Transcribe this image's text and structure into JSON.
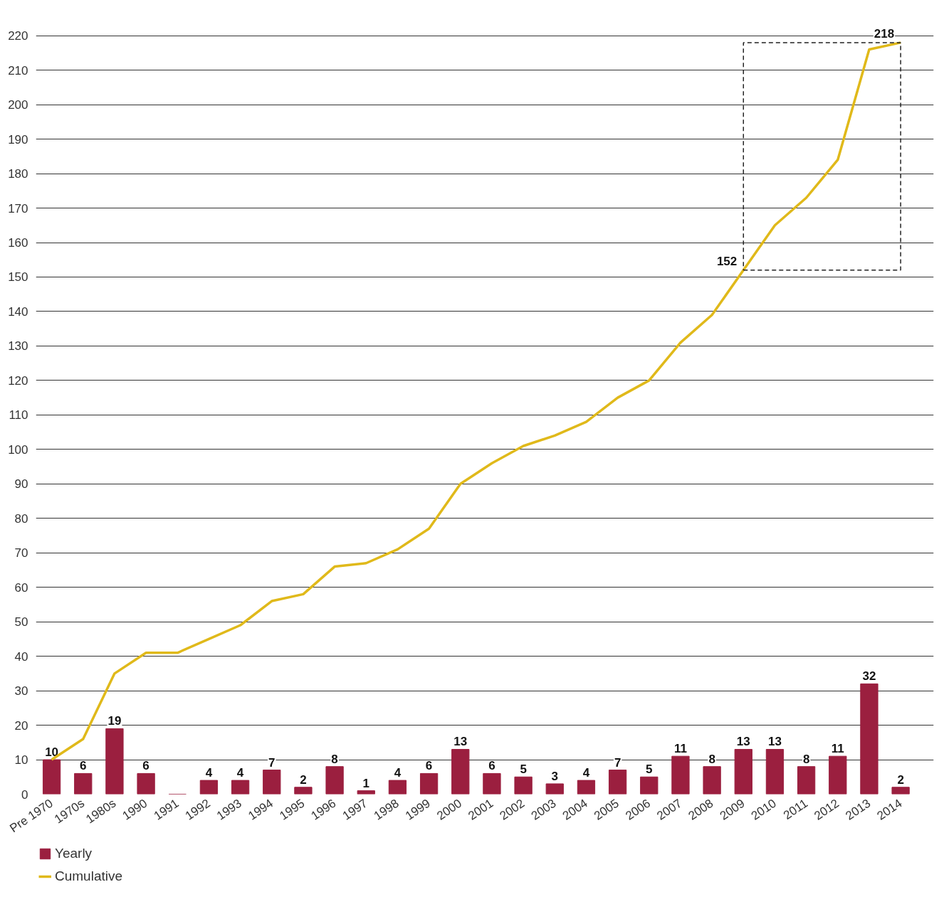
{
  "chart_data": {
    "type": "bar",
    "categories": [
      "Pre 1970",
      "1970s",
      "1980s",
      "1990",
      "1991",
      "1992",
      "1993",
      "1994",
      "1995",
      "1996",
      "1997",
      "1998",
      "1999",
      "2000",
      "2001",
      "2002",
      "2003",
      "2004",
      "2005",
      "2006",
      "2007",
      "2008",
      "2009",
      "2010",
      "2011",
      "2012",
      "2013",
      "2014"
    ],
    "series": [
      {
        "name": "Yearly",
        "type": "bar",
        "color": "#9b1f3f",
        "values": [
          10,
          6,
          19,
          6,
          0,
          4,
          4,
          7,
          2,
          8,
          1,
          4,
          6,
          13,
          6,
          5,
          3,
          4,
          7,
          5,
          11,
          8,
          13,
          13,
          8,
          11,
          32,
          2
        ],
        "value_labels": [
          "10",
          "6",
          "19",
          "6",
          null,
          "4",
          "4",
          "7",
          "2",
          "8",
          "1",
          "4",
          "6",
          "13",
          "6",
          "5",
          "3",
          "4",
          "7",
          "5",
          "11",
          "8",
          "13",
          "13",
          "8",
          "11",
          "32",
          "2"
        ]
      },
      {
        "name": "Cumulative",
        "type": "line",
        "color": "#e0b91a",
        "values": [
          10,
          16,
          35,
          41,
          41,
          45,
          49,
          56,
          58,
          66,
          67,
          71,
          77,
          90,
          96,
          101,
          104,
          108,
          115,
          120,
          131,
          139,
          152,
          165,
          173,
          184,
          216,
          218
        ],
        "value_labels": [
          null,
          null,
          null,
          null,
          null,
          null,
          null,
          null,
          null,
          null,
          null,
          null,
          null,
          null,
          null,
          null,
          null,
          null,
          null,
          null,
          null,
          null,
          "152",
          null,
          null,
          null,
          null,
          "218"
        ]
      }
    ],
    "ylim": [
      0,
      222
    ],
    "yticks": [
      0,
      10,
      20,
      30,
      40,
      50,
      60,
      70,
      80,
      90,
      100,
      110,
      120,
      130,
      140,
      150,
      160,
      170,
      180,
      190,
      200,
      210,
      220
    ],
    "grid": "y",
    "legend": "bottom"
  }
}
